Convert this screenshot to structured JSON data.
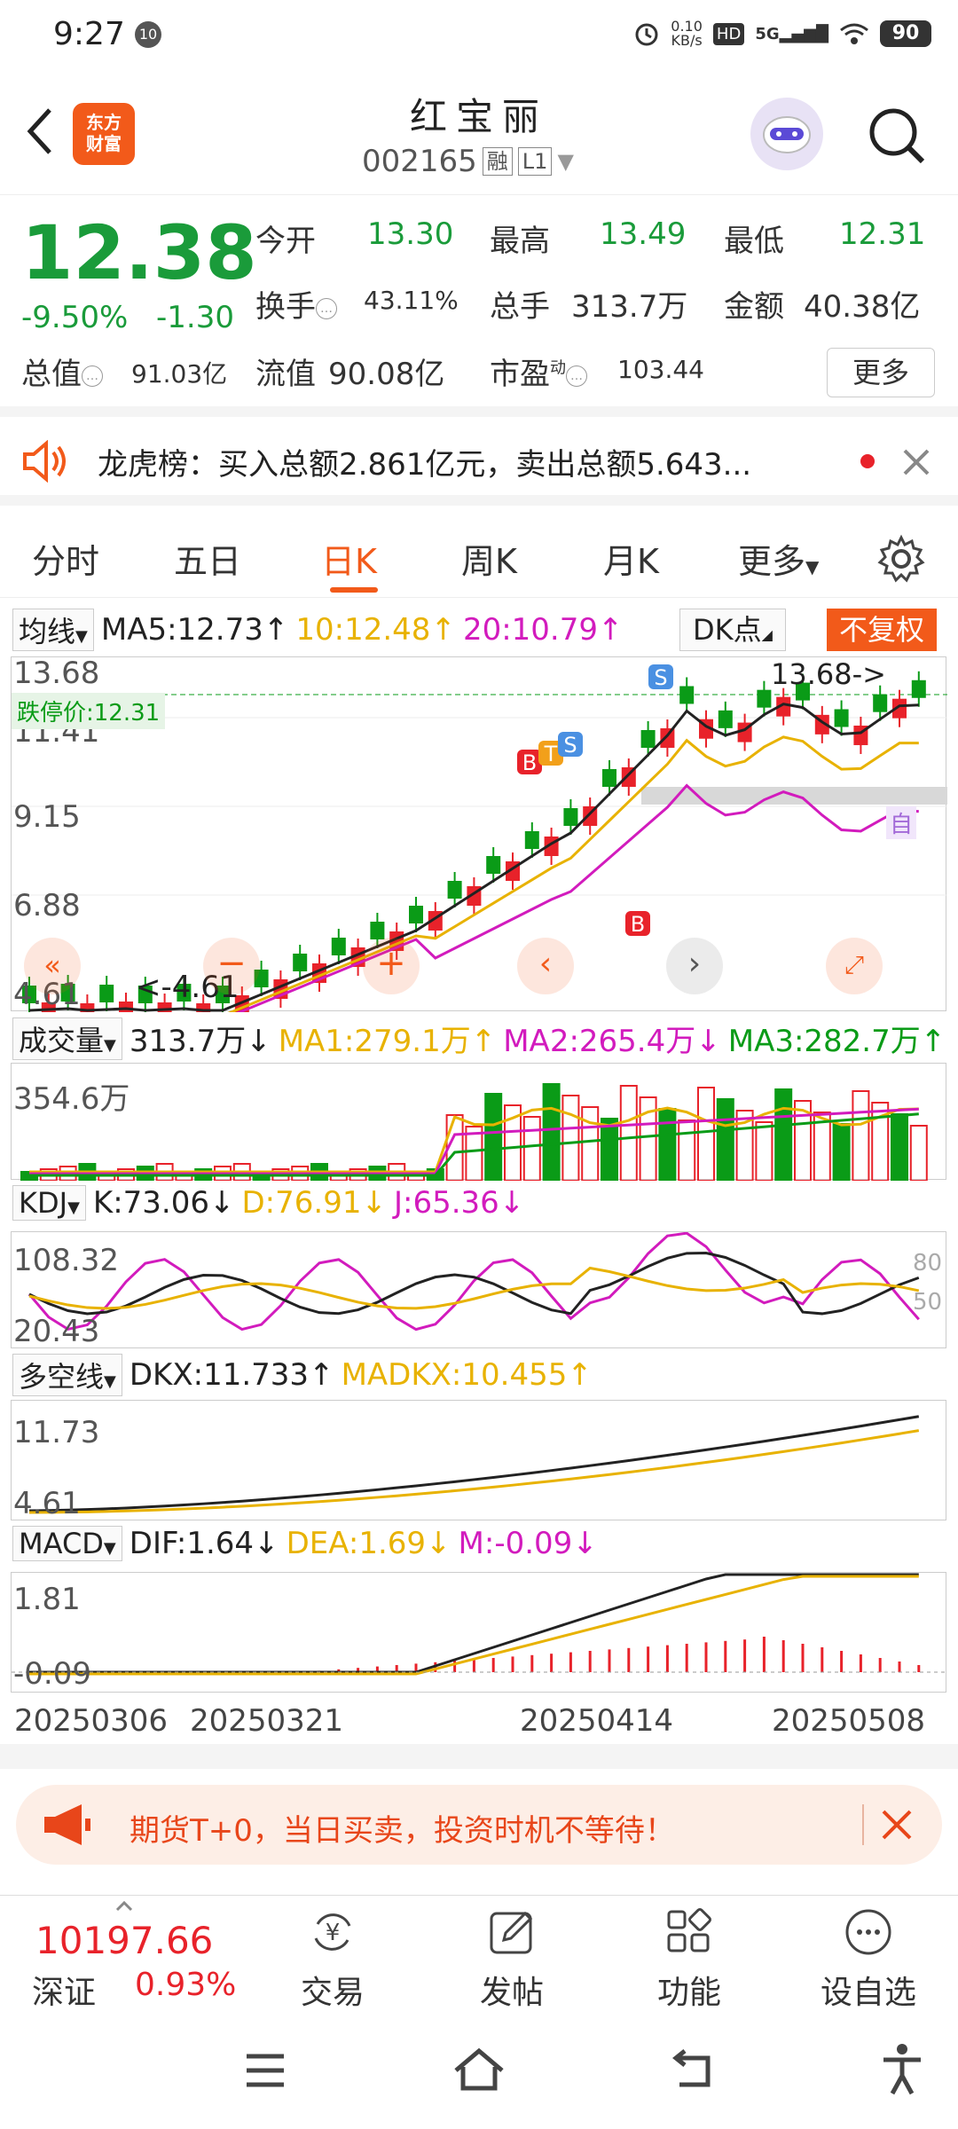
{
  "status": {
    "time": "9:27",
    "notif_badge": "10",
    "net_speed": "0.10",
    "net_unit": "KB/s",
    "hd": "HD",
    "signal": "5G",
    "battery": "90"
  },
  "header": {
    "logo_line1": "东方",
    "logo_line2": "财富",
    "name": "红宝丽",
    "code": "002165",
    "tag1": "融",
    "tag2": "L1"
  },
  "quote": {
    "price": "12.38",
    "pct": "-9.50%",
    "change": "-1.30",
    "open_label": "今开",
    "open": "13.30",
    "high_label": "最高",
    "high": "13.49",
    "low_label": "最低",
    "low": "12.31",
    "turnover_label": "换手",
    "turnover": "43.11%",
    "volume_label": "总手",
    "volume": "313.7万",
    "amount_label": "金额",
    "amount": "40.38亿",
    "mcap_label": "总值",
    "mcap": "91.03亿",
    "float_label": "流值",
    "float": "90.08亿",
    "pe_label": "市盈",
    "pe_sup": "动",
    "pe": "103.44",
    "more": "更多"
  },
  "notice": {
    "text": "龙虎榜：买入总额2.861亿元，卖出总额5.643..."
  },
  "tabs": [
    "分时",
    "五日",
    "日K",
    "周K",
    "月K",
    "更多"
  ],
  "kline": {
    "ind_label": "均线",
    "ma5": "MA5:12.73",
    "ma10": "10:12.48",
    "ma20": "20:10.79",
    "dk_label": "DK点",
    "fq_label": "不复权",
    "y1": "13.68",
    "y2": "11.41",
    "y3": "9.15",
    "y4": "6.88",
    "y5": "4.61",
    "limit_label": "跌停价:12.31",
    "max_marker": "13.68->",
    "min_marker": "<-4.61",
    "self_marker": "自"
  },
  "volume": {
    "ind_label": "成交量",
    "val": "313.7万",
    "ma1": "MA1:279.1万",
    "ma2": "MA2:265.4万",
    "ma3": "MA3:282.7万",
    "y1": "354.6万"
  },
  "kdj": {
    "ind_label": "KDJ",
    "k": "K:73.06",
    "d": "D:76.91",
    "j": "J:65.36",
    "y1": "108.32",
    "y2": "20.43",
    "r80": "80",
    "r50": "50"
  },
  "dkx": {
    "ind_label": "多空线",
    "dkx": "DKX:11.733",
    "madkx": "MADKX:10.455",
    "y1": "11.73",
    "y2": "4.61"
  },
  "macd": {
    "ind_label": "MACD",
    "dif": "DIF:1.64",
    "dea": "DEA:1.69",
    "m": "M:-0.09",
    "y1": "1.81",
    "y2": "-0.09"
  },
  "dates": [
    "20250306",
    "20250321",
    "20250414",
    "20250508"
  ],
  "promo": {
    "text": "期货T+0，当日买卖，投资时机不等待！"
  },
  "bottom": {
    "index_value": "10197.66",
    "index_name": "深证",
    "index_pct": "0.93%",
    "nav": [
      "交易",
      "发帖",
      "功能",
      "设自选"
    ]
  },
  "colors": {
    "accent": "#f25a1a",
    "up": "#e8222a",
    "down": "#0a9b17",
    "ma10": "#e8b200",
    "ma20": "#d21bbd"
  }
}
